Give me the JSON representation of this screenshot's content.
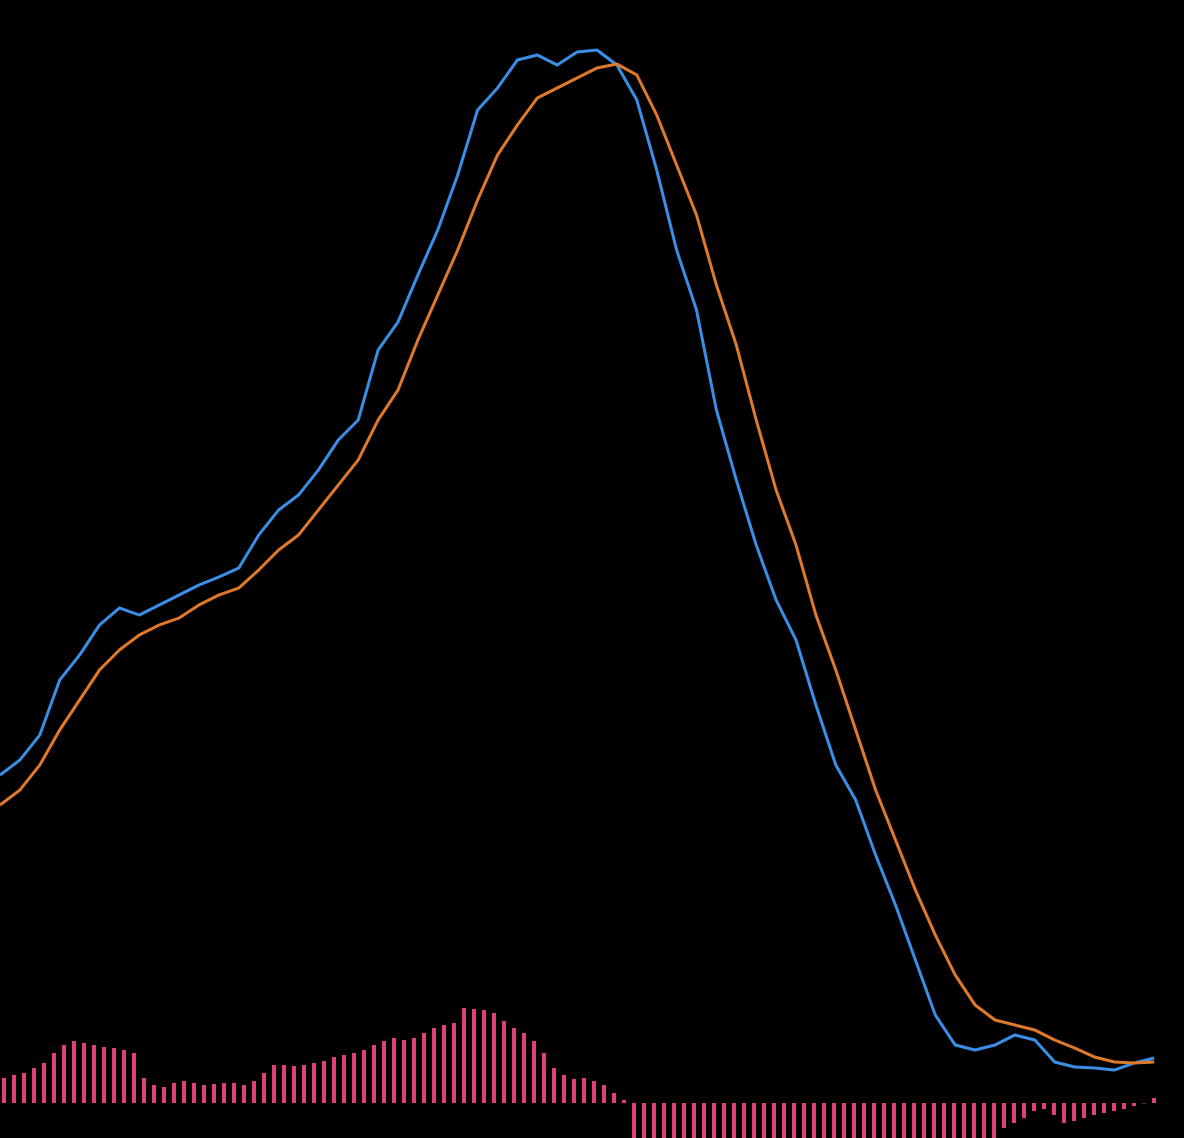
{
  "chart_data": [
    {
      "type": "line",
      "ylim": [
        -3.5,
        110.3
      ],
      "series": [
        {
          "color": "#3a8ee6",
          "values": [
            32.8,
            34.3,
            36.8,
            42.3,
            44.8,
            47.8,
            49.5,
            48.8,
            49.8,
            50.8,
            51.8,
            52.6,
            53.5,
            56.8,
            59.3,
            60.8,
            63.3,
            66.3,
            68.3,
            75.3,
            78.1,
            82.8,
            87.3,
            92.8,
            99.3,
            101.5,
            104.3,
            104.8,
            103.8,
            105.1,
            105.3,
            103.8,
            100.3,
            93.3,
            85.3,
            79.3,
            69.3,
            62.3,
            55.8,
            50.3,
            46.3,
            39.8,
            33.8,
            30.3,
            24.8,
            19.8,
            14.3,
            8.8,
            5.8,
            5.3,
            5.8,
            6.8,
            6.3,
            4.1,
            3.6,
            3.5,
            3.3,
            4.0,
            4.5
          ]
        },
        {
          "color": "#e07a2a",
          "values": [
            29.8,
            31.3,
            33.8,
            37.3,
            40.3,
            43.3,
            45.3,
            46.8,
            47.8,
            48.5,
            49.8,
            50.8,
            51.5,
            53.3,
            55.3,
            56.8,
            59.3,
            61.8,
            64.3,
            68.3,
            71.3,
            76.3,
            80.8,
            85.3,
            90.3,
            94.8,
            97.8,
            100.5,
            101.5,
            102.5,
            103.5,
            103.9,
            102.8,
            98.8,
            93.8,
            88.8,
            81.8,
            75.8,
            68.3,
            61.3,
            55.8,
            48.8,
            43.3,
            37.3,
            31.3,
            26.3,
            21.3,
            16.8,
            12.8,
            9.8,
            8.3,
            7.8,
            7.3,
            6.3,
            5.5,
            4.6,
            4.1,
            4.0,
            4.1
          ]
        }
      ]
    },
    {
      "type": "bar",
      "ylim": [
        -3.5,
        110.3
      ],
      "color": "#e0407a",
      "values": [
        2.5,
        2.8,
        3.0,
        3.5,
        4.0,
        5.0,
        5.8,
        6.2,
        6.0,
        5.8,
        5.6,
        5.5,
        5.3,
        5.0,
        2.5,
        1.8,
        1.6,
        2.0,
        2.2,
        2.0,
        1.8,
        1.9,
        2.0,
        2.0,
        1.8,
        2.2,
        3.0,
        3.8,
        3.8,
        3.7,
        3.8,
        4.0,
        4.2,
        4.6,
        4.8,
        5.0,
        5.3,
        5.8,
        6.2,
        6.5,
        6.3,
        6.5,
        7.0,
        7.5,
        7.8,
        8.0,
        9.5,
        9.4,
        9.3,
        9.0,
        8.2,
        7.5,
        7.0,
        6.2,
        5.0,
        3.5,
        2.8,
        2.4,
        2.5,
        2.2,
        1.8,
        1.0,
        0.3,
        -4,
        -4,
        -4,
        -4,
        -4,
        -4,
        -4,
        -4,
        -4,
        -4,
        -4,
        -4,
        -4,
        -4,
        -4,
        -4,
        -4,
        -4,
        -4,
        -4,
        -4,
        -4,
        -4,
        -4,
        -4,
        -4,
        -4,
        -4,
        -4,
        -4,
        -4,
        -4,
        -4,
        -4,
        -4,
        -4,
        -4,
        -2.5,
        -2.0,
        -1.5,
        -0.8,
        -0.6,
        -1.2,
        -2.0,
        -1.8,
        -1.5,
        -1.2,
        -1.0,
        -0.8,
        -0.6,
        -0.3,
        0.0,
        0.5
      ]
    }
  ]
}
